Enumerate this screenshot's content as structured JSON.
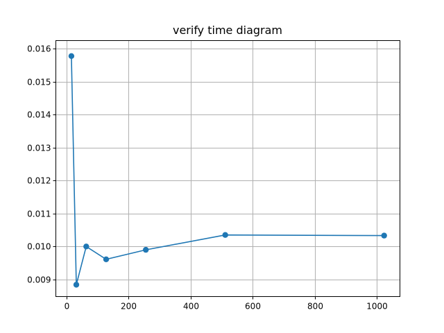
{
  "chart_data": {
    "type": "line",
    "title": "verify time diagram",
    "xlabel": "",
    "ylabel": "",
    "xlim": [
      -34,
      1075
    ],
    "ylim": [
      0.00848,
      0.01625
    ],
    "xticks": [
      0,
      200,
      400,
      600,
      800,
      1000
    ],
    "xtick_labels": [
      "0",
      "200",
      "400",
      "600",
      "800",
      "1000"
    ],
    "yticks": [
      0.009,
      0.01,
      0.011,
      0.012,
      0.013,
      0.014,
      0.015,
      0.016
    ],
    "ytick_labels": [
      "0.009",
      "0.010",
      "0.011",
      "0.012",
      "0.013",
      "0.014",
      "0.015",
      "0.016"
    ],
    "grid": true,
    "legend": "none",
    "series": [
      {
        "color": "#1f77b4",
        "marker": "circle",
        "x": [
          16,
          32,
          64,
          128,
          256,
          512,
          1024
        ],
        "y": [
          0.01578,
          0.00884,
          0.01,
          0.00961,
          0.0099,
          0.01035,
          0.01033
        ]
      }
    ]
  }
}
